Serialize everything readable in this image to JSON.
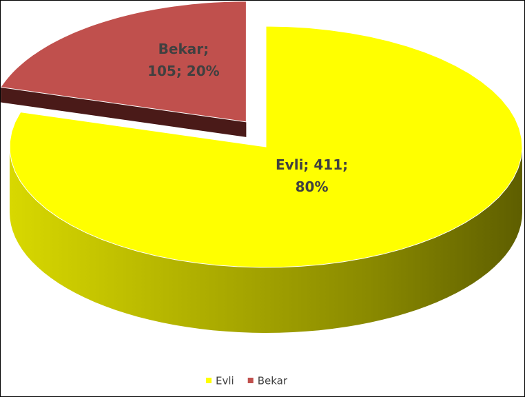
{
  "chart_data": {
    "type": "pie",
    "categories": [
      "Evli",
      "Bekar"
    ],
    "values": [
      411,
      105
    ],
    "value_labels": [
      "Evli; 411; 80%",
      "Bekar; 105; 20%"
    ],
    "colors": [
      "#ffff00",
      "#c0504d"
    ],
    "legend": "bottom"
  }
}
